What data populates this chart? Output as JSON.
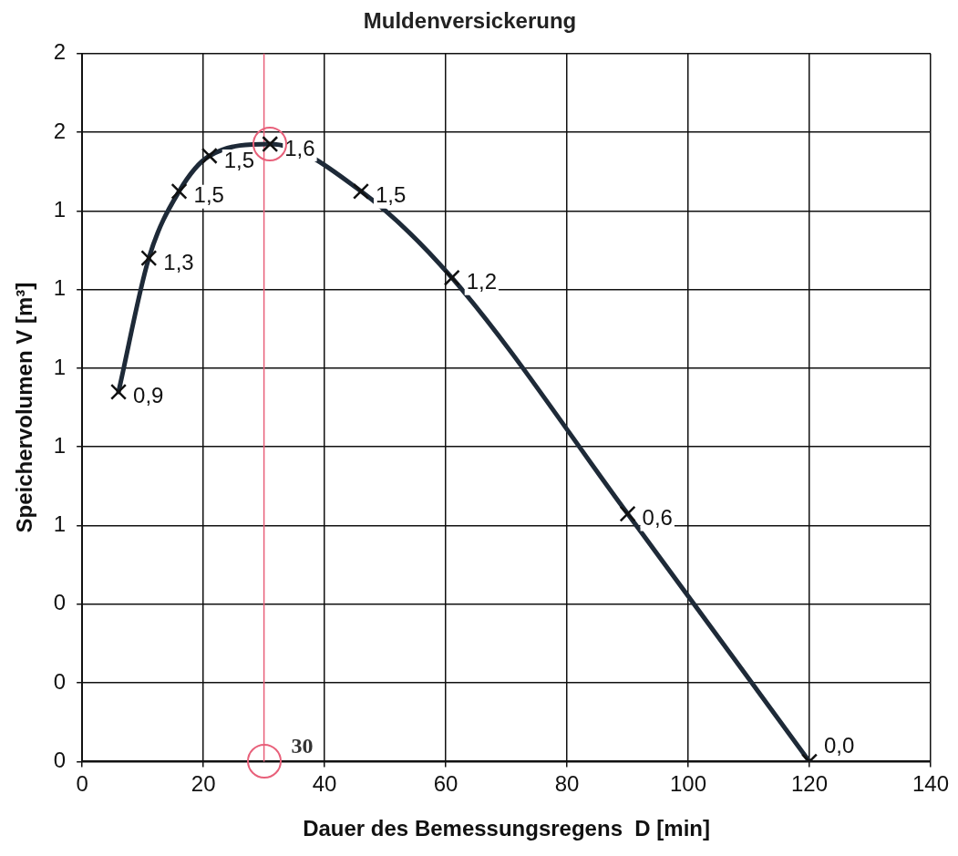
{
  "chart_data": {
    "type": "line",
    "title": "Muldenversickerung",
    "xlabel": "Dauer des Bemessungsregens  D [min]",
    "ylabel": "Speichervolumen V [m³]",
    "x": [
      6,
      11,
      16,
      21,
      31,
      46,
      61,
      90,
      120
    ],
    "series": [
      {
        "color": "#1e2a38",
        "values": [
          0.94,
          1.28,
          1.45,
          1.54,
          1.57,
          1.45,
          1.23,
          0.63,
          0
        ],
        "value_labels": [
          "0,9",
          "1,3",
          "1,5",
          "1,5",
          "1,6",
          "1,5",
          "1,2",
          "0,6",
          "0,0"
        ]
      }
    ],
    "xlim": [
      0,
      140
    ],
    "xticks": [
      0,
      20,
      40,
      60,
      80,
      100,
      120,
      140
    ],
    "ylim": [
      0,
      1.8
    ],
    "yticks": [
      {
        "value": 0,
        "label": "0"
      },
      {
        "value": 0.2,
        "label": "0"
      },
      {
        "value": 0.4,
        "label": "0"
      },
      {
        "value": 0.6,
        "label": "1"
      },
      {
        "value": 0.8,
        "label": "1"
      },
      {
        "value": 1.0,
        "label": "1"
      },
      {
        "value": 1.2,
        "label": "1"
      },
      {
        "value": 1.4,
        "label": "1"
      },
      {
        "value": 1.6,
        "label": "2"
      },
      {
        "value": 1.8,
        "label": "2"
      }
    ],
    "ref_lines": [
      {
        "axis": "x",
        "value": 30,
        "label": "30",
        "color": "#e8607a"
      }
    ],
    "grid": true,
    "legend": false,
    "marker": "cross",
    "line_style": "solid"
  }
}
